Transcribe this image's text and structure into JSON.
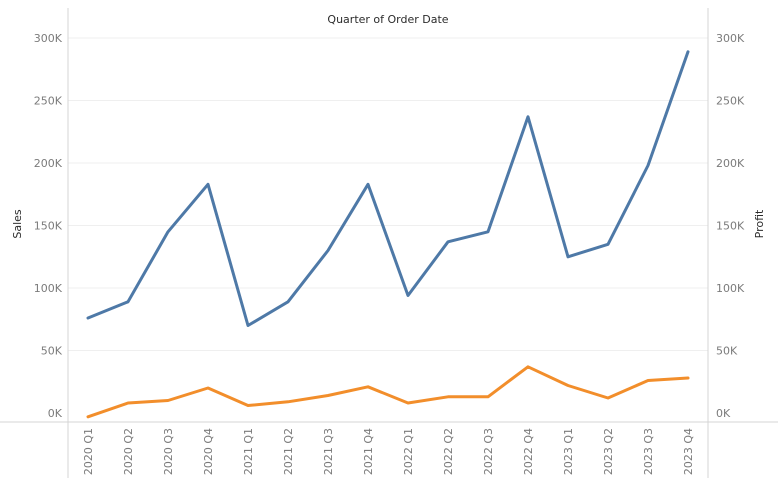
{
  "chart_data": {
    "type": "line",
    "title": "Quarter of Order Date",
    "xlabel": "",
    "ylabel": "Sales",
    "y2label": "Profit",
    "categories": [
      "2020 Q1",
      "2020 Q2",
      "2020 Q3",
      "2020 Q4",
      "2021 Q1",
      "2021 Q2",
      "2021 Q3",
      "2021 Q4",
      "2022 Q1",
      "2022 Q2",
      "2022 Q3",
      "2022 Q4",
      "2023 Q1",
      "2023 Q2",
      "2023 Q3",
      "2023 Q4"
    ],
    "ylim": [
      0,
      300000
    ],
    "yticks": [
      {
        "value": 0,
        "label": "0K"
      },
      {
        "value": 50000,
        "label": "50K"
      },
      {
        "value": 100000,
        "label": "100K"
      },
      {
        "value": 150000,
        "label": "150K"
      },
      {
        "value": 200000,
        "label": "200K"
      },
      {
        "value": 250000,
        "label": "250K"
      },
      {
        "value": 300000,
        "label": "300K"
      }
    ],
    "series": [
      {
        "key": "sales",
        "axis": "left",
        "color": "#4e79a7",
        "values": [
          76000,
          89000,
          145000,
          183000,
          70000,
          89000,
          130000,
          183000,
          94000,
          137000,
          145000,
          237000,
          125000,
          135000,
          198000,
          289000
        ]
      },
      {
        "key": "profit",
        "axis": "right",
        "color": "#f28e2b",
        "values": [
          -3000,
          8000,
          10000,
          20000,
          6000,
          9000,
          14000,
          21000,
          8000,
          13000,
          13000,
          37000,
          22000,
          12000,
          26000,
          28000
        ]
      }
    ],
    "grid": true
  }
}
